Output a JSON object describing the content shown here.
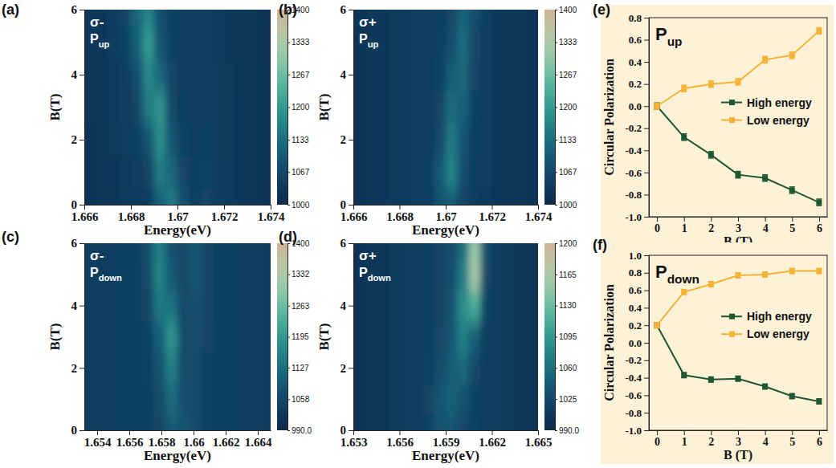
{
  "chart_data": [
    {
      "type": "heatmap",
      "panel": "(a)",
      "polarization": "σ-",
      "annotation": "P",
      "annotation_sub": "up",
      "x": [
        1.66625,
        1.66675,
        1.66725,
        1.66775,
        1.66825,
        1.66875,
        1.66925,
        1.66975,
        1.67025,
        1.67075,
        1.67125,
        1.67175,
        1.67225,
        1.67275,
        1.67325,
        1.67375
      ],
      "y": [
        0,
        1,
        2,
        3,
        4,
        5,
        6
      ],
      "z": [
        [
          1030,
          1032,
          1035,
          1038,
          1040,
          1045,
          1110,
          1150,
          1080,
          1050,
          1060,
          1045,
          1040,
          1035,
          1032,
          1030
        ],
        [
          1030,
          1033,
          1036,
          1040,
          1045,
          1060,
          1150,
          1120,
          1060,
          1050,
          1055,
          1045,
          1040,
          1035,
          1032,
          1030
        ],
        [
          1030,
          1034,
          1038,
          1042,
          1050,
          1090,
          1180,
          1090,
          1055,
          1048,
          1050,
          1042,
          1038,
          1035,
          1032,
          1030
        ],
        [
          1032,
          1035,
          1040,
          1045,
          1060,
          1150,
          1190,
          1070,
          1050,
          1045,
          1048,
          1042,
          1038,
          1035,
          1032,
          1030
        ],
        [
          1032,
          1036,
          1040,
          1048,
          1080,
          1170,
          1120,
          1060,
          1048,
          1045,
          1048,
          1042,
          1038,
          1034,
          1032,
          1030
        ],
        [
          1032,
          1036,
          1042,
          1055,
          1110,
          1200,
          1090,
          1055,
          1048,
          1045,
          1048,
          1040,
          1036,
          1034,
          1032,
          1030
        ],
        [
          1032,
          1036,
          1042,
          1060,
          1120,
          1160,
          1080,
          1055,
          1048,
          1045,
          1046,
          1040,
          1036,
          1034,
          1032,
          1030
        ]
      ],
      "xlim": [
        1.666,
        1.674
      ],
      "xticks": [
        1.666,
        1.668,
        1.67,
        1.672,
        1.674
      ],
      "ylim": [
        0,
        6
      ],
      "yticks": [
        0,
        2,
        4,
        6
      ],
      "xlabel": "Energy(eV)",
      "ylabel": "B(T)",
      "colorbar": {
        "zlim": [
          1000,
          1400
        ],
        "ticks": [
          1000,
          1067,
          1133,
          1200,
          1267,
          1333,
          1400
        ]
      }
    },
    {
      "type": "heatmap",
      "panel": "(b)",
      "polarization": "σ+",
      "annotation": "P",
      "annotation_sub": "up",
      "x": [
        1.66625,
        1.66675,
        1.66725,
        1.66775,
        1.66825,
        1.66875,
        1.66925,
        1.66975,
        1.67025,
        1.67075,
        1.67125,
        1.67175,
        1.67225,
        1.67275,
        1.67325,
        1.67375
      ],
      "y": [
        0,
        1,
        2,
        3,
        4,
        5,
        6
      ],
      "z": [
        [
          1030,
          1032,
          1035,
          1038,
          1040,
          1042,
          1048,
          1085,
          1100,
          1060,
          1045,
          1040,
          1036,
          1034,
          1032,
          1030
        ],
        [
          1030,
          1032,
          1035,
          1038,
          1040,
          1042,
          1050,
          1100,
          1165,
          1080,
          1048,
          1042,
          1036,
          1034,
          1032,
          1030
        ],
        [
          1030,
          1032,
          1035,
          1038,
          1040,
          1042,
          1048,
          1070,
          1150,
          1090,
          1050,
          1042,
          1036,
          1034,
          1032,
          1030
        ],
        [
          1030,
          1032,
          1035,
          1038,
          1040,
          1042,
          1046,
          1060,
          1130,
          1110,
          1055,
          1042,
          1036,
          1034,
          1032,
          1030
        ],
        [
          1030,
          1032,
          1035,
          1038,
          1040,
          1042,
          1045,
          1055,
          1105,
          1125,
          1060,
          1042,
          1036,
          1034,
          1032,
          1030
        ],
        [
          1030,
          1032,
          1035,
          1038,
          1040,
          1042,
          1045,
          1052,
          1080,
          1130,
          1070,
          1045,
          1036,
          1034,
          1032,
          1030
        ],
        [
          1030,
          1032,
          1035,
          1038,
          1040,
          1042,
          1045,
          1050,
          1065,
          1115,
          1080,
          1045,
          1036,
          1034,
          1032,
          1030
        ]
      ],
      "xlim": [
        1.666,
        1.674
      ],
      "xticks": [
        1.666,
        1.668,
        1.67,
        1.672,
        1.674
      ],
      "ylim": [
        0,
        6
      ],
      "yticks": [
        0,
        2,
        4,
        6
      ],
      "xlabel": "Energy(eV)",
      "ylabel": "B(T)",
      "colorbar": {
        "zlim": [
          1000,
          1400
        ],
        "ticks": [
          1000,
          1067,
          1133,
          1200,
          1267,
          1333,
          1400
        ]
      }
    },
    {
      "type": "heatmap",
      "panel": "(c)",
      "polarization": "σ-",
      "annotation": "P",
      "annotation_sub": "down",
      "x": [
        1.653375,
        1.654125,
        1.654875,
        1.655625,
        1.656375,
        1.657125,
        1.657875,
        1.658625,
        1.659375,
        1.660125,
        1.660875,
        1.661625,
        1.662375,
        1.663125,
        1.663875,
        1.664625
      ],
      "y": [
        0,
        1,
        2,
        3,
        4,
        5,
        6
      ],
      "z": [
        [
          1035,
          1036,
          1038,
          1040,
          1042,
          1045,
          1055,
          1090,
          1085,
          1060,
          1048,
          1042,
          1040,
          1038,
          1036,
          1035
        ],
        [
          1035,
          1036,
          1038,
          1040,
          1042,
          1046,
          1065,
          1120,
          1075,
          1062,
          1050,
          1042,
          1040,
          1038,
          1036,
          1035
        ],
        [
          1035,
          1036,
          1038,
          1040,
          1042,
          1048,
          1080,
          1150,
          1070,
          1065,
          1050,
          1042,
          1040,
          1038,
          1036,
          1035
        ],
        [
          1035,
          1036,
          1038,
          1040,
          1043,
          1050,
          1100,
          1185,
          1065,
          1068,
          1052,
          1042,
          1040,
          1038,
          1036,
          1035
        ],
        [
          1035,
          1036,
          1038,
          1040,
          1044,
          1055,
          1140,
          1130,
          1060,
          1075,
          1055,
          1042,
          1040,
          1038,
          1036,
          1035
        ],
        [
          1035,
          1036,
          1038,
          1040,
          1045,
          1060,
          1160,
          1090,
          1058,
          1085,
          1055,
          1042,
          1040,
          1038,
          1036,
          1035
        ],
        [
          1035,
          1036,
          1038,
          1040,
          1046,
          1070,
          1150,
          1075,
          1056,
          1090,
          1055,
          1042,
          1040,
          1038,
          1036,
          1035
        ]
      ],
      "xlim": [
        1.6532,
        1.6648
      ],
      "xticks": [
        1.654,
        1.656,
        1.658,
        1.66,
        1.662,
        1.664
      ],
      "ylim": [
        0,
        6
      ],
      "yticks": [
        0,
        2,
        4,
        6
      ],
      "xlabel": "Energy(eV)",
      "ylabel": "B(T)",
      "colorbar": {
        "zlim": [
          990,
          1400
        ],
        "ticks": [
          {
            "value": 990,
            "label": "990.0"
          },
          1058,
          1127,
          1195,
          1263,
          1332,
          1400
        ]
      }
    },
    {
      "type": "heatmap",
      "panel": "(d)",
      "polarization": "σ+",
      "annotation": "P",
      "annotation_sub": "down",
      "x": [
        1.653375,
        1.654125,
        1.654875,
        1.655625,
        1.656375,
        1.657125,
        1.657875,
        1.658625,
        1.659375,
        1.660125,
        1.660875,
        1.661625,
        1.662375,
        1.663125,
        1.663875,
        1.664625
      ],
      "y": [
        0,
        1,
        2,
        3,
        4,
        5,
        6
      ],
      "z": [
        [
          1005,
          1006,
          1008,
          1010,
          1012,
          1014,
          1020,
          1035,
          1040,
          1025,
          1018,
          1014,
          1012,
          1010,
          1008,
          1006
        ],
        [
          1005,
          1006,
          1008,
          1010,
          1012,
          1014,
          1022,
          1040,
          1048,
          1035,
          1020,
          1014,
          1012,
          1010,
          1008,
          1006
        ],
        [
          1005,
          1006,
          1008,
          1010,
          1012,
          1014,
          1020,
          1030,
          1045,
          1055,
          1028,
          1014,
          1012,
          1010,
          1008,
          1006
        ],
        [
          1005,
          1006,
          1008,
          1010,
          1012,
          1014,
          1018,
          1025,
          1040,
          1075,
          1045,
          1016,
          1012,
          1010,
          1008,
          1006
        ],
        [
          1005,
          1006,
          1008,
          1010,
          1012,
          1014,
          1018,
          1022,
          1035,
          1085,
          1110,
          1020,
          1012,
          1010,
          1008,
          1006
        ],
        [
          1005,
          1006,
          1008,
          1010,
          1012,
          1014,
          1018,
          1022,
          1032,
          1070,
          1160,
          1025,
          1012,
          1010,
          1008,
          1006
        ],
        [
          1005,
          1006,
          1008,
          1010,
          1012,
          1014,
          1018,
          1022,
          1030,
          1060,
          1150,
          1030,
          1014,
          1010,
          1008,
          1006
        ]
      ],
      "xlim": [
        1.653,
        1.665
      ],
      "xticks": [
        1.653,
        1.656,
        1.659,
        1.662,
        1.665
      ],
      "ylim": [
        0,
        6
      ],
      "yticks": [
        0,
        2,
        4,
        6
      ],
      "xlabel": "Energy(eV)",
      "ylabel": "B(T)",
      "colorbar": {
        "zlim": [
          990,
          1200
        ],
        "ticks": [
          {
            "value": 990,
            "label": "990.0"
          },
          1025,
          1060,
          1095,
          1130,
          1165,
          1200
        ]
      }
    },
    {
      "type": "line",
      "panel": "(e)",
      "annotation": "P",
      "annotation_sub": "up",
      "x": [
        0,
        1,
        2,
        3,
        4,
        5,
        6
      ],
      "xlim": [
        -0.3,
        6.3
      ],
      "xticks": [
        0,
        1,
        2,
        3,
        4,
        5,
        6
      ],
      "ylim": [
        -1.0,
        0.8
      ],
      "yticks": [
        {
          "value": -1.0,
          "label": "-1.0"
        },
        -0.8,
        -0.6,
        -0.4,
        -0.2,
        {
          "value": 0,
          "label": "0.0"
        },
        0.2,
        0.4,
        0.6,
        0.8
      ],
      "xlabel": "B (T)",
      "ylabel": "Circular Polarization",
      "legend": "right",
      "series": [
        {
          "name": "High energy",
          "color": "#1e5631",
          "marker": "square",
          "values": [
            0,
            -0.28,
            -0.44,
            -0.62,
            -0.65,
            -0.76,
            -0.87
          ],
          "errors": [
            0.03,
            0.03,
            0.03,
            0.03,
            0.03,
            0.03,
            0.03
          ]
        },
        {
          "name": "Low energy",
          "color": "#f5b335",
          "marker": "square",
          "values": [
            0,
            0.16,
            0.2,
            0.22,
            0.42,
            0.46,
            0.68
          ],
          "errors": [
            0.03,
            0.03,
            0.03,
            0.03,
            0.03,
            0.03,
            0.03
          ]
        }
      ]
    },
    {
      "type": "line",
      "panel": "(f)",
      "annotation": "P",
      "annotation_sub": "down",
      "x": [
        0,
        1,
        2,
        3,
        4,
        5,
        6
      ],
      "xlim": [
        -0.3,
        6.3
      ],
      "xticks": [
        0,
        1,
        2,
        3,
        4,
        5,
        6
      ],
      "ylim": [
        -1.0,
        1.0
      ],
      "yticks": [
        {
          "value": -1.0,
          "label": "-1.0"
        },
        -0.8,
        -0.6,
        -0.4,
        -0.2,
        {
          "value": 0,
          "label": "0.0"
        },
        0.2,
        0.4,
        0.6,
        0.8,
        {
          "value": 1.0,
          "label": "1.0"
        }
      ],
      "xlabel": "B (T)",
      "ylabel": "Circular Polarization",
      "legend": "right",
      "series": [
        {
          "name": "High energy",
          "color": "#1e5631",
          "marker": "square",
          "values": [
            0.2,
            -0.37,
            -0.42,
            -0.41,
            -0.5,
            -0.61,
            -0.67
          ],
          "errors": [
            0.03,
            0.03,
            0.03,
            0.03,
            0.03,
            0.03,
            0.03
          ]
        },
        {
          "name": "Low energy",
          "color": "#f5b335",
          "marker": "square",
          "values": [
            0.2,
            0.58,
            0.67,
            0.77,
            0.78,
            0.82,
            0.82
          ],
          "errors": [
            0.03,
            0.03,
            0.03,
            0.03,
            0.03,
            0.03,
            0.03
          ]
        }
      ]
    }
  ]
}
